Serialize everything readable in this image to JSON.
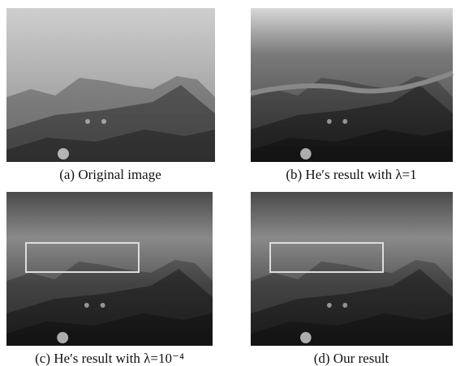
{
  "figure": {
    "panels": [
      {
        "caption": "(a) Original image"
      },
      {
        "caption": "(b) He′s result with λ=1"
      },
      {
        "caption": "(c) He′s result with λ=10⁻⁴"
      },
      {
        "caption": "(d) Our result"
      }
    ]
  }
}
